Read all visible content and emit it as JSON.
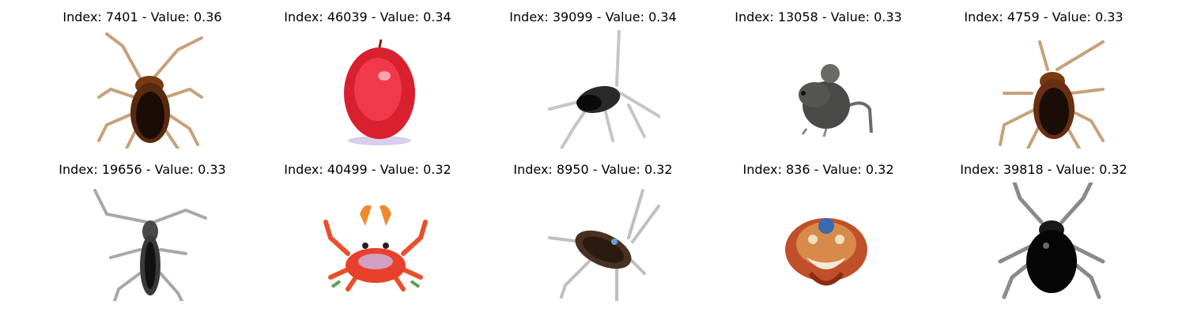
{
  "grid": {
    "items": [
      {
        "title": "Index: 7401 - Value: 0.36",
        "subject": "cockroach-image"
      },
      {
        "title": "Index: 46039 - Value: 0.34",
        "subject": "red-apple-image"
      },
      {
        "title": "Index: 39099 - Value: 0.34",
        "subject": "cricket-image"
      },
      {
        "title": "Index: 13058 - Value: 0.33",
        "subject": "mouse-image"
      },
      {
        "title": "Index: 4759 - Value: 0.33",
        "subject": "cockroach-image"
      },
      {
        "title": "Index: 19656 - Value: 0.33",
        "subject": "longhorn-beetle-image"
      },
      {
        "title": "Index: 40499 - Value: 0.32",
        "subject": "red-crab-image"
      },
      {
        "title": "Index: 8950 - Value: 0.32",
        "subject": "cockroach-image"
      },
      {
        "title": "Index: 836 - Value: 0.32",
        "subject": "crab-image"
      },
      {
        "title": "Index: 39818 - Value: 0.32",
        "subject": "black-beetle-image"
      }
    ]
  }
}
